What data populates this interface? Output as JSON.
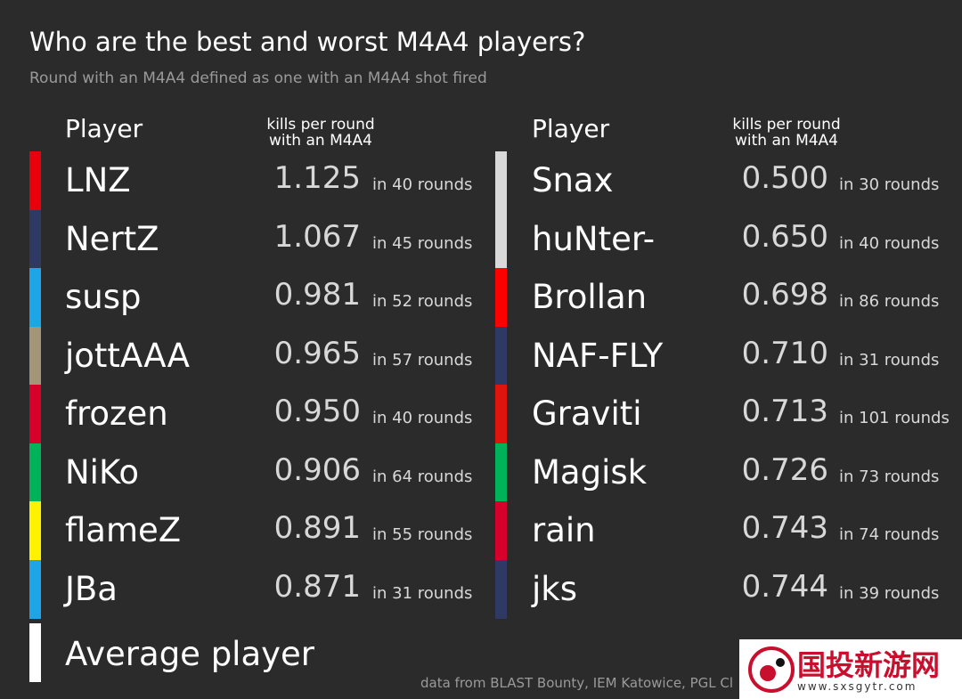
{
  "header": {
    "title": "Who are the best and worst M4A4 players?",
    "subtitle": "Round with an M4A4 defined as one with an M4A4 shot fired"
  },
  "tables": [
    {
      "column_player": "Player",
      "column_metric": [
        "kills per round",
        "with an M4A4"
      ],
      "rows": [
        {
          "player": "LNZ",
          "kpr": "1.125",
          "rounds": "in 40 rounds",
          "color": "#e8000b"
        },
        {
          "player": "NertZ",
          "kpr": "1.067",
          "rounds": "in 45 rounds",
          "color": "#2e3a63"
        },
        {
          "player": "susp",
          "kpr": "0.981",
          "rounds": "in 52 rounds",
          "color": "#1ea5e8"
        },
        {
          "player": "jottAAA",
          "kpr": "0.965",
          "rounds": "in 57 rounds",
          "color": "#a39678"
        },
        {
          "player": "frozen",
          "kpr": "0.950",
          "rounds": "in 40 rounds",
          "color": "#d6002a"
        },
        {
          "player": "NiKo",
          "kpr": "0.906",
          "rounds": "in 64 rounds",
          "color": "#00b259"
        },
        {
          "player": "flameZ",
          "kpr": "0.891",
          "rounds": "in 55 rounds",
          "color": "#fff200"
        },
        {
          "player": "JBa",
          "kpr": "0.871",
          "rounds": "in 31 rounds",
          "color": "#1ea5e8"
        }
      ]
    },
    {
      "column_player": "Player",
      "column_metric": [
        "kills per round",
        "with an M4A4"
      ],
      "rows": [
        {
          "player": "Snax",
          "kpr": "0.500",
          "rounds": "in 30 rounds",
          "color": "#d9d9d9"
        },
        {
          "player": "huNter-",
          "kpr": "0.650",
          "rounds": "in 40 rounds",
          "color": "#d9d9d9"
        },
        {
          "player": "Brollan",
          "kpr": "0.698",
          "rounds": "in 86 rounds",
          "color": "#ff0000"
        },
        {
          "player": "NAF-FLY",
          "kpr": "0.710",
          "rounds": "in 31 rounds",
          "color": "#2e3a63"
        },
        {
          "player": "Graviti",
          "kpr": "0.713",
          "rounds": "in 101 rounds",
          "color": "#e0140e"
        },
        {
          "player": "Magisk",
          "kpr": "0.726",
          "rounds": "in 73 rounds",
          "color": "#00b259"
        },
        {
          "player": "rain",
          "kpr": "0.743",
          "rounds": "in 74 rounds",
          "color": "#d6002a"
        },
        {
          "player": "jks",
          "kpr": "0.744",
          "rounds": "in 39 rounds",
          "color": "#2e3a63"
        }
      ]
    }
  ],
  "average": {
    "player": "Average player",
    "color": "#ffffff"
  },
  "source": "data from BLAST Bounty, IEM Katowice, PGL Cl",
  "watermark": {
    "name": "国投新游网",
    "url": "www.sxsgytr.com"
  }
}
